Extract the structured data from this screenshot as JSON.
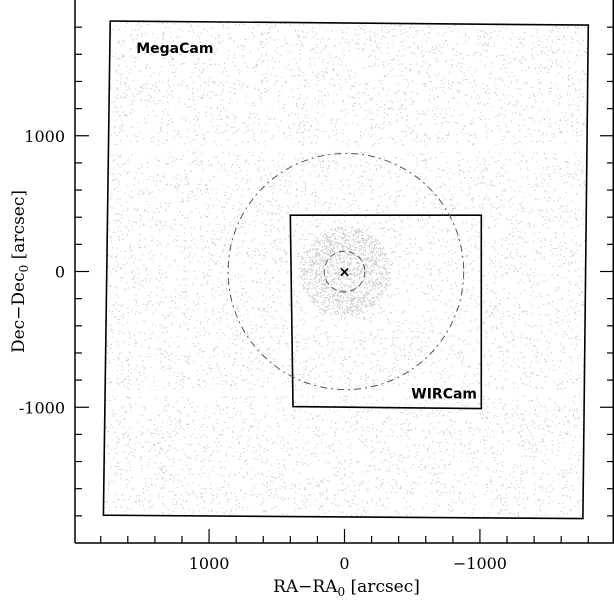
{
  "chart_data": {
    "type": "scatter",
    "xlabel": "RA−RA",
    "xlabel_sub": "0",
    "xlabel_unit": " [arcsec]",
    "ylabel": "Dec−Dec",
    "ylabel_sub": "0",
    "ylabel_unit": " [arcsec]",
    "xlim": [
      1990,
      -1990
    ],
    "ylim": [
      -2000,
      2000
    ],
    "x_reversed": true,
    "x_ticks": [
      1000,
      0,
      -1000
    ],
    "x_tick_labels": [
      "1000",
      "0",
      "−1000"
    ],
    "y_ticks": [
      1000,
      0,
      -1000
    ],
    "y_tick_labels": [
      "1000",
      "0",
      "-1000"
    ],
    "minor_tick_step": 200,
    "point_color": "#c8c8c8",
    "outline_color": "#000000",
    "fields": [
      {
        "name": "MegaCam",
        "corners": [
          [
            1730,
            1845
          ],
          [
            -1800,
            1815
          ],
          [
            -1760,
            -1820
          ],
          [
            1780,
            -1795
          ]
        ]
      },
      {
        "name": "WIRCam",
        "corners": [
          [
            400,
            415
          ],
          [
            -1010,
            415
          ],
          [
            -1010,
            -1010
          ],
          [
            380,
            -995
          ]
        ]
      }
    ],
    "circles": [
      {
        "center": [
          -10,
          0
        ],
        "radius": 870,
        "style": "dash-dot"
      },
      {
        "center": [
          0,
          0
        ],
        "radius": 150,
        "style": "dashed"
      }
    ],
    "center_marker": {
      "x": 0,
      "y": 0,
      "symbol": "×"
    },
    "gaps_y": [
      905,
      -895
    ],
    "gaps_x": [
      1460,
      1000,
      560,
      100,
      -330,
      -770,
      -1220,
      -1660
    ]
  }
}
